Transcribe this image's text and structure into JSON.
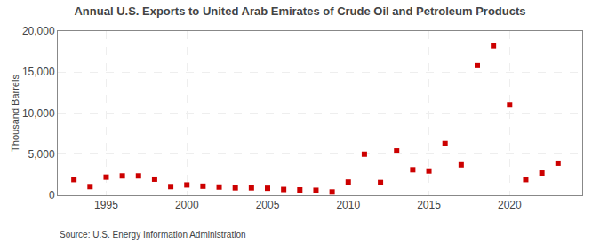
{
  "chart_data": {
    "type": "scatter",
    "title": "Annual U.S. Exports to United Arab Emirates of Crude Oil and Petroleum Products",
    "ylabel": "Thousand Barrels",
    "annotations": [
      "Source: U.S. Energy Information Administration"
    ],
    "x": [
      1993,
      1994,
      1995,
      1996,
      1997,
      1998,
      1999,
      2000,
      2001,
      2002,
      2003,
      2004,
      2005,
      2006,
      2007,
      2008,
      2009,
      2010,
      2011,
      2012,
      2013,
      2014,
      2015,
      2016,
      2017,
      2018,
      2019,
      2020,
      2021,
      2022,
      2023
    ],
    "values": [
      1900,
      1050,
      2200,
      2350,
      2350,
      1950,
      1050,
      1250,
      1100,
      1000,
      900,
      900,
      850,
      700,
      650,
      600,
      400,
      1600,
      5000,
      1550,
      5400,
      3100,
      2950,
      6300,
      3700,
      15800,
      18200,
      11000,
      1900,
      2700,
      3900
    ],
    "color": "#cc0000",
    "marker": "square",
    "xlim": [
      1992,
      2024.5
    ],
    "ylim": [
      0,
      20000
    ],
    "yticks": [
      0,
      {
        "value": 5000,
        "label": "5,000"
      },
      {
        "value": 10000,
        "label": "10,000"
      },
      {
        "value": 15000,
        "label": "15,000"
      },
      {
        "value": 20000,
        "label": "20,000"
      }
    ],
    "xticks": [
      1995,
      2000,
      2005,
      2010,
      2015,
      2020
    ],
    "grid": true
  }
}
